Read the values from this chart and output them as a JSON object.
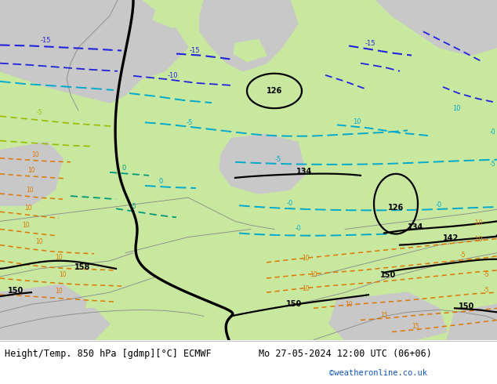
{
  "title_left": "Height/Temp. 850 hPa [gdmp][°C] ECMWF",
  "title_right": "Mo 27-05-2024 12:00 UTC (06+06)",
  "credit": "©weatheronline.co.uk",
  "figsize": [
    6.34,
    4.9
  ],
  "dpi": 100,
  "map_green": "#c8e8a0",
  "map_gray": "#c8c8c8",
  "map_white": "#e8e8e8",
  "border_color": "#888888",
  "black_contour_lw": 2.4,
  "thin_black_lw": 1.6,
  "blue_lw": 1.5,
  "cyan_lw": 1.4,
  "teal_lw": 1.3,
  "ygreen_lw": 1.2,
  "orange_lw": 1.1
}
